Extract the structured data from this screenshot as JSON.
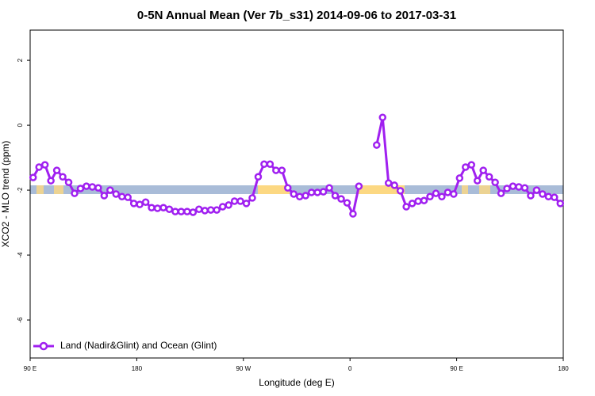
{
  "chart_data": {
    "type": "line",
    "title": "0-5N Annual Mean (Ver 7b_s31)   2014-09-06 to 2017-03-31",
    "x_label": "Longitude (deg E)",
    "y_label": "XCO2 - MLO trend (ppm)",
    "xlim": [
      90,
      540
    ],
    "ylim": [
      -7.17,
      2.93
    ],
    "xticks": [
      {
        "value": 90,
        "label": "90 E"
      },
      180,
      {
        "value": 270,
        "label": "90 W"
      },
      {
        "value": 360,
        "label": "0"
      },
      {
        "value": 450,
        "label": "90 E"
      },
      {
        "value": 540,
        "label": "180"
      }
    ],
    "yticks": [
      2,
      0,
      -2,
      -4,
      -6
    ],
    "x": [
      92.5,
      97.5,
      102.5,
      107.5,
      112.5,
      117.5,
      122.5,
      127.5,
      132.5,
      137.5,
      142.5,
      147.5,
      152.5,
      157.5,
      162.5,
      167.5,
      172.5,
      177.5,
      182.5,
      187.5,
      192.5,
      197.5,
      202.5,
      207.5,
      212.5,
      217.5,
      222.5,
      227.5,
      232.5,
      237.5,
      242.5,
      247.5,
      252.5,
      257.5,
      262.5,
      267.5,
      272.5,
      277.5,
      282.5,
      287.5,
      292.5,
      297.5,
      302.5,
      307.5,
      312.5,
      317.5,
      322.5,
      327.5,
      332.5,
      337.5,
      342.5,
      347.5,
      352.5,
      357.5,
      362.5,
      367.5,
      372.5,
      377.5,
      382.5,
      387.5,
      392.5,
      397.5,
      402.5,
      407.5,
      412.5,
      417.5,
      422.5,
      427.5,
      432.5,
      437.5,
      442.5,
      447.5,
      452.5,
      457.5,
      462.5,
      467.5,
      472.5,
      477.5,
      482.5,
      487.5,
      492.5,
      497.5,
      502.5,
      507.5,
      512.5,
      517.5,
      522.5,
      527.5,
      532.5,
      537.5
    ],
    "series": [
      {
        "name": "Land (Nadir&Glint) and Ocean (Glint)",
        "color": "#a020f0",
        "values": [
          -1.61,
          -1.29,
          -1.22,
          -1.71,
          -1.39,
          -1.59,
          -1.76,
          -2.1,
          -1.95,
          -1.88,
          -1.9,
          -1.93,
          -2.17,
          -2.0,
          -2.12,
          -2.2,
          -2.22,
          -2.41,
          -2.44,
          -2.37,
          -2.54,
          -2.56,
          -2.54,
          -2.59,
          -2.66,
          -2.66,
          -2.66,
          -2.68,
          -2.59,
          -2.63,
          -2.61,
          -2.61,
          -2.51,
          -2.46,
          -2.34,
          -2.34,
          -2.41,
          -2.24,
          -1.59,
          -1.2,
          -1.2,
          -1.39,
          -1.39,
          -1.93,
          -2.12,
          -2.2,
          -2.17,
          -2.07,
          -2.07,
          -2.05,
          -1.93,
          -2.17,
          -2.27,
          -2.39,
          -2.73,
          -1.88,
          null,
          null,
          -0.61,
          0.24,
          -1.78,
          -1.85,
          -2.02,
          -2.51,
          -2.41,
          -2.34,
          -2.32,
          -2.2,
          -2.1,
          -2.2,
          -2.07,
          -2.12,
          -1.63,
          -1.29,
          -1.22,
          -1.71,
          -1.39,
          -1.59,
          -1.76,
          -2.1,
          -1.95,
          -1.88,
          -1.9,
          -1.93,
          -2.17,
          -2.0,
          -2.12,
          -2.2,
          -2.22,
          -2.41
        ]
      }
    ]
  }
}
